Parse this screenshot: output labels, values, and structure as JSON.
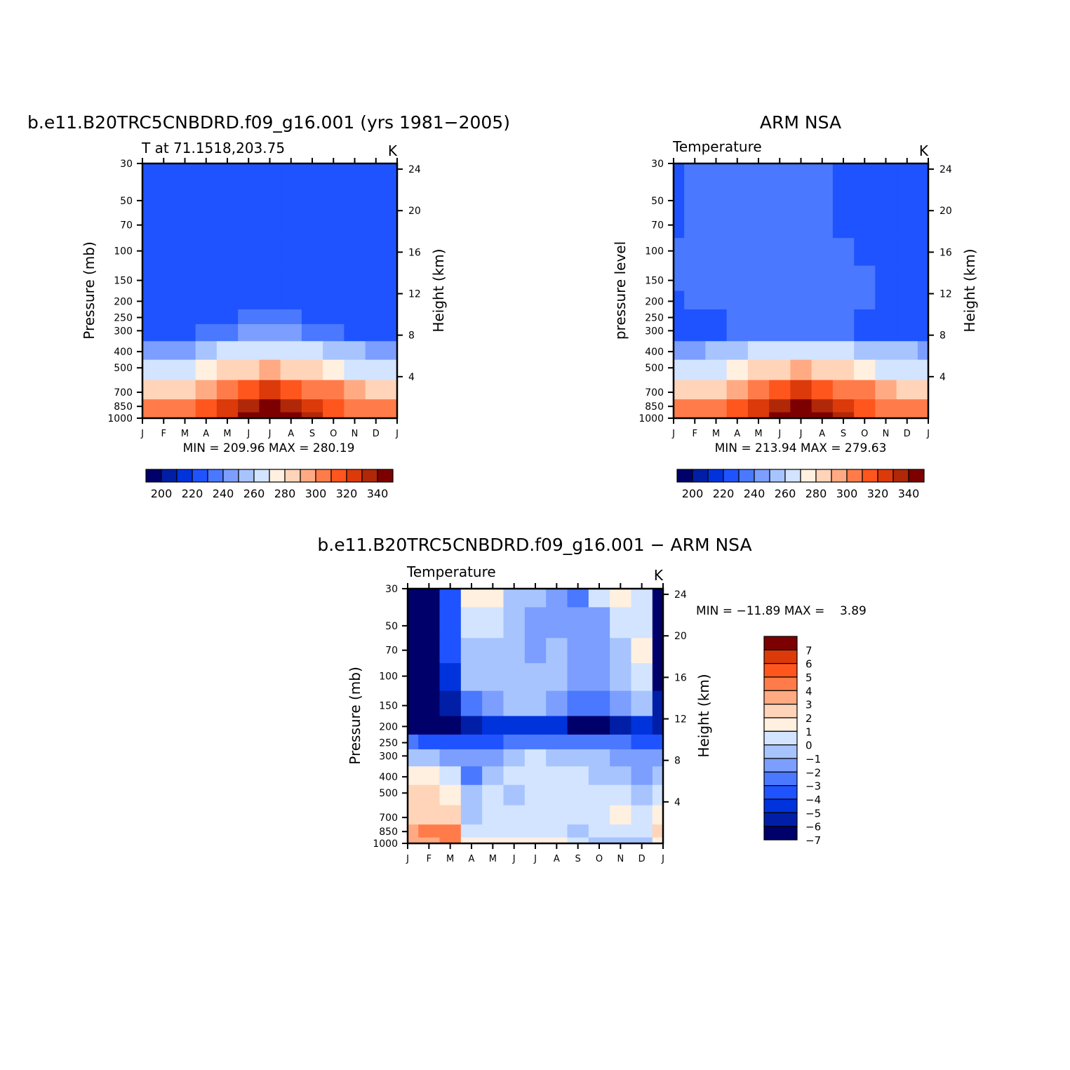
{
  "figure": {
    "colors": {
      "temp_scale": [
        "#00006b",
        "#001fa6",
        "#0033dc",
        "#1f53ff",
        "#4a78ff",
        "#7c9eff",
        "#a8c4ff",
        "#d2e4ff",
        "#fff0e0",
        "#ffd4b8",
        "#ffaa82",
        "#ff7c4a",
        "#ff561e",
        "#dc3a0a",
        "#b02808",
        "#7d0000"
      ],
      "diff_scale": [
        "#00006b",
        "#001fa6",
        "#0033dc",
        "#1f53ff",
        "#4a78ff",
        "#7c9eff",
        "#a8c4ff",
        "#d2e4ff",
        "#fff0e0",
        "#ffd4b8",
        "#ffaa82",
        "#ff7c4a",
        "#ff561e",
        "#dc3a0a",
        "#7d0000"
      ]
    }
  },
  "chart_data": [
    {
      "type": "heatmap",
      "title": "b.e11.B20TRC5CNBDRD.f09_g16.001 (yrs 1981−2005)",
      "subtitle_left": "T at 71.1518,203.75",
      "subtitle_right": "K",
      "ylabel": "Pressure (mb)",
      "ylabel_right": "Height (km)",
      "x_ticks": [
        "J",
        "F",
        "M",
        "A",
        "M",
        "J",
        "J",
        "A",
        "S",
        "O",
        "N",
        "D",
        "J"
      ],
      "y_ticks": [
        30,
        50,
        70,
        100,
        150,
        200,
        250,
        300,
        400,
        500,
        700,
        850,
        1000
      ],
      "y_log_scale": true,
      "y_range_mb": [
        1000,
        30
      ],
      "height_ticks_km": [
        4,
        8,
        12,
        16,
        20,
        24
      ],
      "stats": "MIN = 209.96 MAX = 280.19",
      "min": 209.96,
      "max": 280.19,
      "colorbar_labels": [
        200,
        220,
        240,
        260,
        280,
        300,
        320,
        340
      ],
      "colorbar_bins": 16,
      "levels": [
        200,
        205,
        210,
        215,
        220,
        225,
        230,
        235,
        240,
        245,
        250,
        255,
        260,
        265,
        270,
        275
      ],
      "months": [
        "J",
        "F",
        "M",
        "A",
        "M",
        "J",
        "J",
        "A",
        "S",
        "O",
        "N",
        "D",
        "J"
      ],
      "pressure_levels": [
        30,
        50,
        70,
        100,
        150,
        200,
        250,
        300,
        400,
        500,
        700,
        850,
        1000
      ],
      "values": [
        [
          210,
          213,
          214,
          214,
          214,
          214,
          214,
          214,
          213,
          211,
          210,
          210,
          210
        ],
        [
          210,
          211,
          212,
          214,
          214,
          214,
          214,
          214,
          213,
          211,
          210,
          210,
          210
        ],
        [
          210,
          211,
          212,
          213,
          214,
          214,
          214,
          214,
          213,
          211,
          210,
          210,
          210
        ],
        [
          210,
          211,
          212,
          213,
          214,
          214,
          214,
          213,
          213,
          211,
          210,
          210,
          210
        ],
        [
          210,
          211,
          211,
          212,
          214,
          214,
          214,
          213,
          212,
          211,
          210,
          210,
          210
        ],
        [
          210,
          210,
          211,
          211,
          212,
          213,
          213,
          212,
          211,
          210,
          210,
          210,
          210
        ],
        [
          212,
          212,
          212,
          213,
          214,
          215,
          217,
          215,
          214,
          213,
          212,
          212,
          212
        ],
        [
          213,
          213,
          213,
          215,
          217,
          220,
          222,
          220,
          217,
          215,
          214,
          213,
          213
        ],
        [
          224,
          224,
          224,
          227,
          230,
          232,
          234,
          232,
          230,
          227,
          225,
          224,
          224
        ],
        [
          233,
          233,
          233,
          236,
          240,
          243,
          245,
          243,
          240,
          237,
          234,
          233,
          233
        ],
        [
          243,
          244,
          244,
          248,
          253,
          257,
          260,
          258,
          254,
          250,
          246,
          244,
          243
        ],
        [
          250,
          250,
          251,
          255,
          262,
          267,
          271,
          269,
          263,
          257,
          252,
          250,
          250
        ],
        [
          252,
          252,
          252,
          256,
          264,
          271,
          276,
          274,
          266,
          259,
          254,
          252,
          252
        ]
      ]
    },
    {
      "type": "heatmap",
      "title": "ARM NSA",
      "subtitle_left": "Temperature",
      "subtitle_right": "K",
      "ylabel": "pressure level",
      "ylabel_right": "Height (km)",
      "x_ticks": [
        "J",
        "F",
        "M",
        "A",
        "M",
        "J",
        "J",
        "A",
        "S",
        "O",
        "N",
        "D",
        "J"
      ],
      "y_ticks": [
        30,
        50,
        70,
        100,
        150,
        200,
        250,
        300,
        400,
        500,
        700,
        850,
        1000
      ],
      "y_log_scale": true,
      "y_range_mb": [
        1000,
        30
      ],
      "height_ticks_km": [
        4,
        8,
        12,
        16,
        20,
        24
      ],
      "stats": "MIN = 213.94 MAX = 279.63",
      "min": 213.94,
      "max": 279.63,
      "colorbar_labels": [
        200,
        220,
        240,
        260,
        280,
        300,
        320,
        340
      ],
      "colorbar_bins": 16,
      "levels": [
        200,
        205,
        210,
        215,
        220,
        225,
        230,
        235,
        240,
        245,
        250,
        255,
        260,
        265,
        270,
        275
      ],
      "months": [
        "J",
        "F",
        "M",
        "A",
        "M",
        "J",
        "J",
        "A",
        "S",
        "O",
        "N",
        "D",
        "J"
      ],
      "pressure_levels": [
        30,
        50,
        70,
        100,
        150,
        200,
        250,
        300,
        400,
        500,
        700,
        850,
        1000
      ],
      "values": [
        [
          214,
          217,
          217,
          217,
          217,
          218,
          219,
          216,
          214,
          214,
          214,
          213,
          212
        ],
        [
          214,
          217,
          217,
          217,
          217,
          218,
          218,
          216,
          214,
          212,
          211,
          211,
          211
        ],
        [
          214,
          217,
          217,
          217,
          217,
          217,
          217,
          217,
          214,
          212,
          211,
          211,
          211
        ],
        [
          215,
          217,
          217,
          217,
          217,
          217,
          217,
          217,
          216,
          213,
          212,
          211,
          211
        ],
        [
          215,
          217,
          217,
          217,
          217,
          217,
          217,
          217,
          217,
          216,
          213,
          212,
          212
        ],
        [
          214,
          216,
          216,
          216,
          216,
          217,
          217,
          217,
          217,
          216,
          214,
          213,
          214
        ],
        [
          210,
          210,
          212,
          215,
          216,
          217,
          217,
          216,
          215,
          211,
          211,
          212,
          212
        ],
        [
          210,
          210,
          213,
          216,
          217,
          217,
          217,
          216,
          215,
          213,
          212,
          212,
          212
        ],
        [
          224,
          224,
          225,
          228,
          231,
          233,
          234,
          233,
          231,
          228,
          226,
          225,
          224
        ],
        [
          233,
          233,
          233,
          236,
          240,
          243,
          245,
          243,
          240,
          237,
          234,
          233,
          233
        ],
        [
          243,
          244,
          244,
          248,
          253,
          257,
          260,
          258,
          254,
          250,
          246,
          244,
          243
        ],
        [
          250,
          250,
          251,
          255,
          262,
          267,
          271,
          269,
          263,
          257,
          252,
          250,
          250
        ],
        [
          252,
          252,
          252,
          256,
          264,
          271,
          277,
          275,
          267,
          259,
          254,
          252,
          252
        ]
      ]
    },
    {
      "type": "heatmap",
      "title": "b.e11.B20TRC5CNBDRD.f09_g16.001 − ARM NSA",
      "subtitle_left": "Temperature",
      "subtitle_right": "K",
      "ylabel": "Pressure (mb)",
      "ylabel_right": "Height (km)",
      "x_ticks": [
        "J",
        "F",
        "M",
        "A",
        "M",
        "J",
        "J",
        "A",
        "S",
        "O",
        "N",
        "D",
        "J"
      ],
      "y_ticks": [
        30,
        50,
        70,
        100,
        150,
        200,
        250,
        300,
        400,
        500,
        700,
        850,
        1000
      ],
      "y_log_scale": true,
      "y_range_mb": [
        1000,
        30
      ],
      "height_ticks_km": [
        4,
        8,
        12,
        16,
        20,
        24
      ],
      "stats": "MIN = −11.89 MAX =    3.89",
      "min": -11.89,
      "max": 3.89,
      "colorbar_labels": [
        "7",
        "6",
        "5",
        "4",
        "3",
        "2",
        "1",
        "0",
        "−1",
        "−2",
        "−3",
        "−4",
        "−5",
        "−6",
        "−7"
      ],
      "colorbar_bins": 15,
      "levels": [
        -7,
        -6,
        -5,
        -4,
        -3,
        -2,
        -1,
        0,
        1,
        2,
        3,
        4,
        5,
        6,
        7
      ],
      "months": [
        "J",
        "F",
        "M",
        "A",
        "M",
        "J",
        "J",
        "A",
        "S",
        "O",
        "N",
        "D",
        "J"
      ],
      "pressure_levels": [
        30,
        50,
        70,
        100,
        150,
        200,
        250,
        300,
        400,
        500,
        700,
        850,
        1000
      ],
      "values": [
        [
          -9,
          -8,
          -4.5,
          0.5,
          0.3,
          -1.5,
          -1.8,
          -2.6,
          -3.5,
          -0.8,
          0.5,
          -0.5,
          -8
        ],
        [
          -9,
          -8,
          -4.5,
          -0.7,
          -0.8,
          -1.8,
          -2.5,
          -2.5,
          -3,
          -2.5,
          -1,
          -0.5,
          -8
        ],
        [
          -9,
          -8,
          -5,
          -1.2,
          -1.2,
          -1.8,
          -2.5,
          -1.8,
          -2.5,
          -2.8,
          -1.2,
          0.5,
          -8
        ],
        [
          -9,
          -8,
          -5.5,
          -2,
          -1.5,
          -1.8,
          -2,
          -1.5,
          -2.5,
          -3,
          -1.5,
          -0.5,
          -8
        ],
        [
          -9,
          -8.5,
          -7,
          -4,
          -2.5,
          -2,
          -1.8,
          -2.5,
          -3.5,
          -4,
          -3,
          -1.5,
          -7
        ],
        [
          -8.5,
          -8.5,
          -8,
          -7,
          -6,
          -6,
          -6,
          -6,
          -8,
          -8,
          -7,
          -6,
          -7
        ],
        [
          -4,
          -5,
          -5,
          -4.5,
          -4.8,
          -4,
          -4,
          -3.5,
          -3.5,
          -4,
          -4,
          -4.5,
          -5
        ],
        [
          -1.5,
          -2,
          -2.5,
          -3,
          -2.5,
          -2,
          -1,
          -1.2,
          -1.5,
          -2,
          -2.5,
          -2.5,
          -3
        ],
        [
          0.3,
          0.2,
          -0.5,
          -3.5,
          -1.2,
          -1,
          -0.5,
          -0.8,
          -1,
          -1.5,
          -1.2,
          -3,
          -2
        ],
        [
          1,
          1,
          0.5,
          -2,
          -0.5,
          -1.5,
          -0.5,
          -0.5,
          -0.5,
          -1,
          -0.8,
          -1.5,
          -1
        ],
        [
          1.3,
          1.8,
          1.5,
          -1.5,
          -0.5,
          -0.7,
          -0.5,
          -0.7,
          -1,
          -0.5,
          0.3,
          -0.5,
          0.5
        ],
        [
          2.5,
          3,
          3.5,
          -1,
          -0.5,
          -0.5,
          -0.7,
          -1,
          -2,
          -1,
          -0.5,
          -0.3,
          1
        ],
        [
          2,
          2.5,
          3.9,
          0,
          0.2,
          0.1,
          0.1,
          0.1,
          -1,
          -1.5,
          -1.5,
          -1.8,
          0.5
        ]
      ]
    }
  ]
}
